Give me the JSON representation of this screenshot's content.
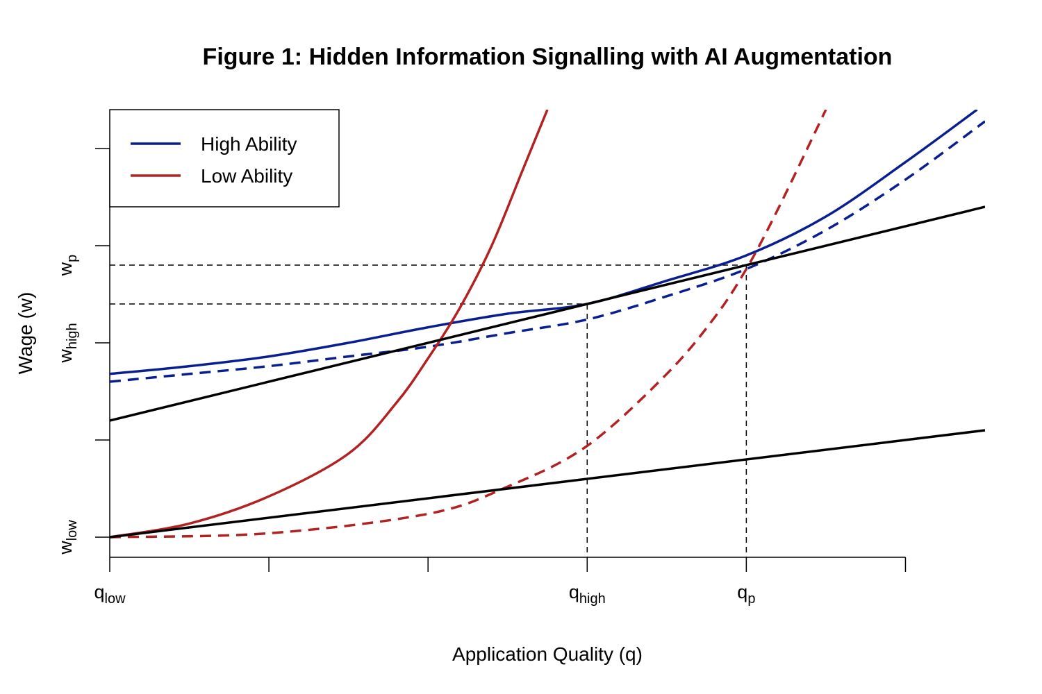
{
  "chart_data": {
    "type": "line",
    "title": "Figure 1: Hidden Information Signalling with AI Augmentation",
    "xlabel": "Application Quality (q)",
    "ylabel": "Wage (w)",
    "xlim": [
      0,
      5.5
    ],
    "ylim": [
      0,
      2.2
    ],
    "x_ticks": [
      0,
      1,
      2,
      3,
      4,
      5
    ],
    "y_ticks": [
      0,
      0.5,
      1,
      1.5,
      2
    ],
    "x_tick_labels": [
      {
        "x": 0,
        "base": "q",
        "sub": "low"
      },
      {
        "x": 3,
        "base": "q",
        "sub": "high"
      },
      {
        "x": 4,
        "base": "q",
        "sub": "p"
      }
    ],
    "y_tick_labels": [
      {
        "y": 0,
        "base": "w",
        "sub": "low"
      },
      {
        "y": 1,
        "base": "w",
        "sub": "high"
      },
      {
        "y": 1.4,
        "base": "w",
        "sub": "p"
      }
    ],
    "reference_lines": [
      {
        "q": 3,
        "w": 1.2
      },
      {
        "q": 4,
        "w": 1.4
      }
    ],
    "series": [
      {
        "name": "High Ability",
        "color": "#0a1f8f",
        "style": "solid",
        "points": [
          [
            0,
            0.84
          ],
          [
            0.5,
            0.88
          ],
          [
            1,
            0.93
          ],
          [
            1.5,
            1
          ],
          [
            2,
            1.08
          ],
          [
            2.5,
            1.15
          ],
          [
            3,
            1.2
          ],
          [
            3.5,
            1.32
          ],
          [
            4,
            1.45
          ],
          [
            4.5,
            1.65
          ],
          [
            5,
            1.93
          ],
          [
            5.45,
            2.2
          ]
        ]
      },
      {
        "name": "",
        "color": "#0a1f8f",
        "style": "dashed",
        "points": [
          [
            0,
            0.8
          ],
          [
            0.5,
            0.84
          ],
          [
            1,
            0.88
          ],
          [
            1.5,
            0.93
          ],
          [
            2,
            0.98
          ],
          [
            2.5,
            1.05
          ],
          [
            3,
            1.12
          ],
          [
            3.5,
            1.24
          ],
          [
            4,
            1.38
          ],
          [
            4.5,
            1.58
          ],
          [
            5,
            1.84
          ],
          [
            5.5,
            2.14
          ]
        ]
      },
      {
        "name": "Low Ability",
        "color": "#b22222",
        "style": "solid",
        "points": [
          [
            0,
            0
          ],
          [
            0.5,
            0.07
          ],
          [
            1,
            0.21
          ],
          [
            1.5,
            0.43
          ],
          [
            1.8,
            0.69
          ],
          [
            2,
            0.92
          ],
          [
            2.2,
            1.18
          ],
          [
            2.4,
            1.5
          ],
          [
            2.6,
            1.9
          ],
          [
            2.75,
            2.2
          ]
        ]
      },
      {
        "name": "",
        "color": "#b22222",
        "style": "dashed",
        "points": [
          [
            0,
            0
          ],
          [
            1,
            0.02
          ],
          [
            2,
            0.12
          ],
          [
            2.5,
            0.26
          ],
          [
            3,
            0.47
          ],
          [
            3.5,
            0.84
          ],
          [
            3.8,
            1.13
          ],
          [
            4,
            1.38
          ],
          [
            4.2,
            1.69
          ],
          [
            4.5,
            2.2
          ]
        ]
      },
      {
        "name": "",
        "color": "#000000",
        "style": "solid",
        "points": [
          [
            0,
            0.6
          ],
          [
            5.5,
            1.7
          ]
        ]
      },
      {
        "name": "",
        "color": "#000000",
        "style": "solid",
        "points": [
          [
            0,
            0
          ],
          [
            5.5,
            0.55
          ]
        ]
      }
    ],
    "legend": {
      "placement": "top-left",
      "entries": [
        "High Ability",
        "Low Ability"
      ]
    }
  }
}
